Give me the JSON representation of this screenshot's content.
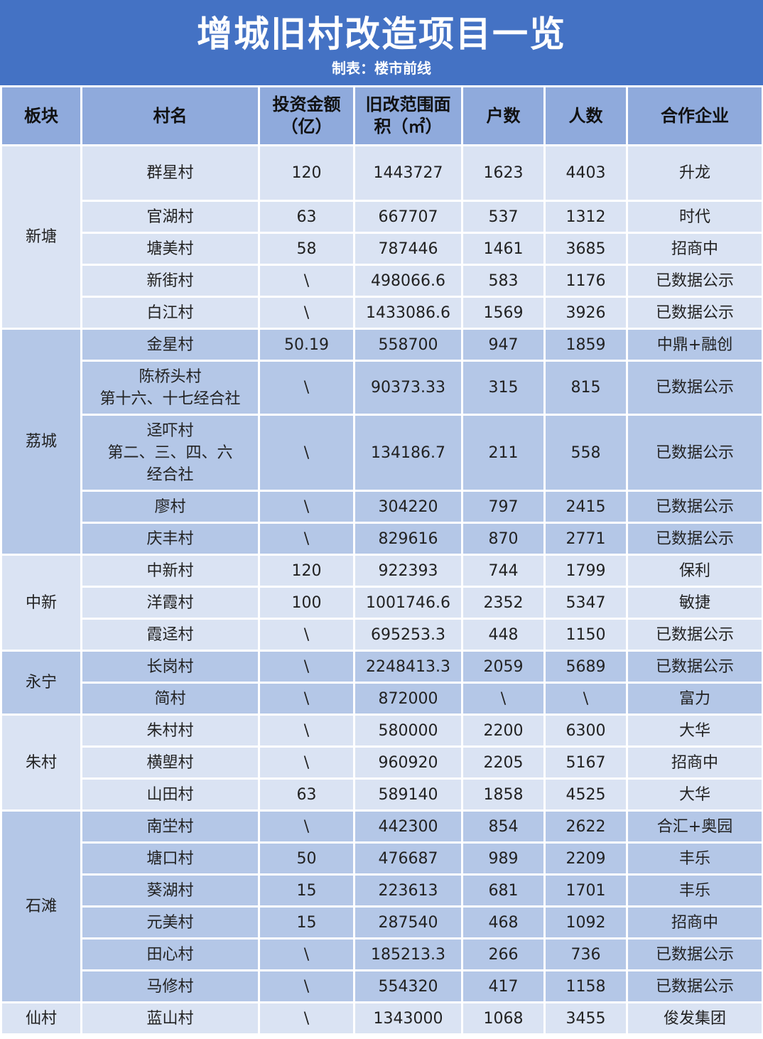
{
  "title": "增城旧村改造项目一览",
  "subtitle": "制表：楼市前线",
  "colors": {
    "banner": "#4472c4",
    "header": "#8faadc",
    "light_band": "#dae3f3",
    "dark_band": "#b4c7e7"
  },
  "columns": [
    "板块",
    "村名",
    "投资金额（亿）",
    "旧改范围面积（㎡）",
    "户数",
    "人数",
    "合作企业"
  ],
  "groups": [
    {
      "district": "新塘",
      "rows": [
        [
          "群星村",
          "120",
          "1443727",
          "1623",
          "4403",
          "升龙"
        ],
        [
          "官湖村",
          "63",
          "667707",
          "537",
          "1312",
          "时代"
        ],
        [
          "塘美村",
          "58",
          "787446",
          "1461",
          "3685",
          "招商中"
        ],
        [
          "新街村",
          "\\",
          "498066.6",
          "583",
          "1176",
          "已数据公示"
        ],
        [
          "白江村",
          "\\",
          "1433086.6",
          "1569",
          "3926",
          "已数据公示"
        ]
      ]
    },
    {
      "district": "荔城",
      "rows": [
        [
          "金星村",
          "50.19",
          "558700",
          "947",
          "1859",
          "中鼎+融创"
        ],
        [
          "陈桥头村\n第十六、十七经合社",
          "\\",
          "90373.33",
          "315",
          "815",
          "已数据公示"
        ],
        [
          "迳吓村\n第二、三、四、六\n经合社",
          "\\",
          "134186.7",
          "211",
          "558",
          "已数据公示"
        ],
        [
          "廖村",
          "\\",
          "304220",
          "797",
          "2415",
          "已数据公示"
        ],
        [
          "庆丰村",
          "\\",
          "829616",
          "870",
          "2771",
          "已数据公示"
        ]
      ]
    },
    {
      "district": "中新",
      "rows": [
        [
          "中新村",
          "120",
          "922393",
          "744",
          "1799",
          "保利"
        ],
        [
          "洋霞村",
          "100",
          "1001746.6",
          "2352",
          "5347",
          "敏捷"
        ],
        [
          "霞迳村",
          "\\",
          "695253.3",
          "448",
          "1150",
          "已数据公示"
        ]
      ]
    },
    {
      "district": "永宁",
      "rows": [
        [
          "长岗村",
          "\\",
          "2248413.3",
          "2059",
          "5689",
          "已数据公示"
        ],
        [
          "简村",
          "\\",
          "872000",
          "\\",
          "\\",
          "富力"
        ]
      ]
    },
    {
      "district": "朱村",
      "rows": [
        [
          "朱村村",
          "\\",
          "580000",
          "2200",
          "6300",
          "大华"
        ],
        [
          "横塱村",
          "\\",
          "960920",
          "2205",
          "5167",
          "招商中"
        ],
        [
          "山田村",
          "63",
          "589140",
          "1858",
          "4525",
          "大华"
        ]
      ]
    },
    {
      "district": "石滩",
      "rows": [
        [
          "南坣村",
          "\\",
          "442300",
          "854",
          "2622",
          "合汇+奥园"
        ],
        [
          "塘口村",
          "50",
          "476687",
          "989",
          "2209",
          "丰乐"
        ],
        [
          "葵湖村",
          "15",
          "223613",
          "681",
          "1701",
          "丰乐"
        ],
        [
          "元美村",
          "15",
          "287540",
          "468",
          "1092",
          "招商中"
        ],
        [
          "田心村",
          "\\",
          "185213.3",
          "266",
          "736",
          "已数据公示"
        ],
        [
          "马修村",
          "\\",
          "554320",
          "417",
          "1158",
          "已数据公示"
        ]
      ]
    },
    {
      "district": "仙村",
      "rows": [
        [
          "蓝山村",
          "\\",
          "1343000",
          "1068",
          "3455",
          "俊发集团"
        ]
      ]
    }
  ]
}
